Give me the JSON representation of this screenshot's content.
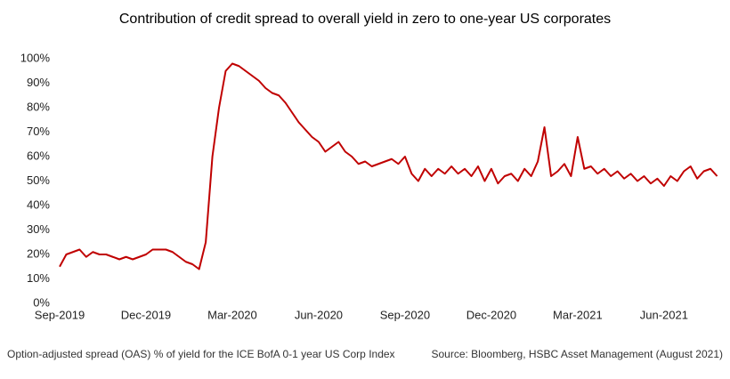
{
  "chart_data": {
    "type": "line",
    "title": "Contribution of credit spread to overall yield in zero to one-year US corporates",
    "footnote": "Option-adjusted spread (OAS) % of yield for the ICE BofA 0-1 year US Corp Index",
    "source": "Source: Bloomberg, HSBC Asset Management (August 2021)",
    "categories": [
      "Sep-2019",
      null,
      null,
      null,
      null,
      null,
      null,
      null,
      null,
      null,
      null,
      null,
      null,
      "Dec-2019",
      null,
      null,
      null,
      null,
      null,
      null,
      null,
      null,
      null,
      null,
      null,
      null,
      "Mar-2020",
      null,
      null,
      null,
      null,
      null,
      null,
      null,
      null,
      null,
      null,
      null,
      null,
      "Jun-2020",
      null,
      null,
      null,
      null,
      null,
      null,
      null,
      null,
      null,
      null,
      null,
      null,
      "Sep-2020",
      null,
      null,
      null,
      null,
      null,
      null,
      null,
      null,
      null,
      null,
      null,
      null,
      "Dec-2020",
      null,
      null,
      null,
      null,
      null,
      null,
      null,
      null,
      null,
      null,
      null,
      null,
      "Mar-2021",
      null,
      null,
      null,
      null,
      null,
      null,
      null,
      null,
      null,
      null,
      null,
      null,
      "Jun-2021",
      null,
      null,
      null,
      null,
      null,
      null,
      null,
      null
    ],
    "series": [
      {
        "color": "#c00000",
        "values": [
          15,
          20,
          21,
          22,
          19,
          21,
          20,
          20,
          19,
          18,
          19,
          18,
          19,
          20,
          22,
          22,
          22,
          21,
          19,
          17,
          16,
          14,
          25,
          60,
          80,
          95,
          98,
          97,
          95,
          93,
          91,
          88,
          86,
          85,
          82,
          78,
          74,
          71,
          68,
          66,
          62,
          64,
          66,
          62,
          60,
          57,
          58,
          56,
          57,
          58,
          59,
          57,
          60,
          53,
          50,
          55,
          52,
          55,
          53,
          56,
          53,
          55,
          52,
          56,
          50,
          55,
          49,
          52,
          53,
          50,
          55,
          52,
          58,
          72,
          52,
          54,
          57,
          52,
          68,
          55,
          56,
          53,
          55,
          52,
          54,
          51,
          53,
          50,
          52,
          49,
          51,
          48,
          52,
          50,
          54,
          56,
          51,
          54,
          55,
          52
        ]
      }
    ],
    "ylim": [
      0,
      100
    ],
    "yticks": [
      {
        "value": 0,
        "label": "0%"
      },
      {
        "value": 10,
        "label": "10%"
      },
      {
        "value": 20,
        "label": "20%"
      },
      {
        "value": 30,
        "label": "30%"
      },
      {
        "value": 40,
        "label": "40%"
      },
      {
        "value": 50,
        "label": "50%"
      },
      {
        "value": 60,
        "label": "60%"
      },
      {
        "value": 70,
        "label": "70%"
      },
      {
        "value": 80,
        "label": "80%"
      },
      {
        "value": 90,
        "label": "90%"
      },
      {
        "value": 100,
        "label": "100%"
      }
    ],
    "grid": false
  }
}
